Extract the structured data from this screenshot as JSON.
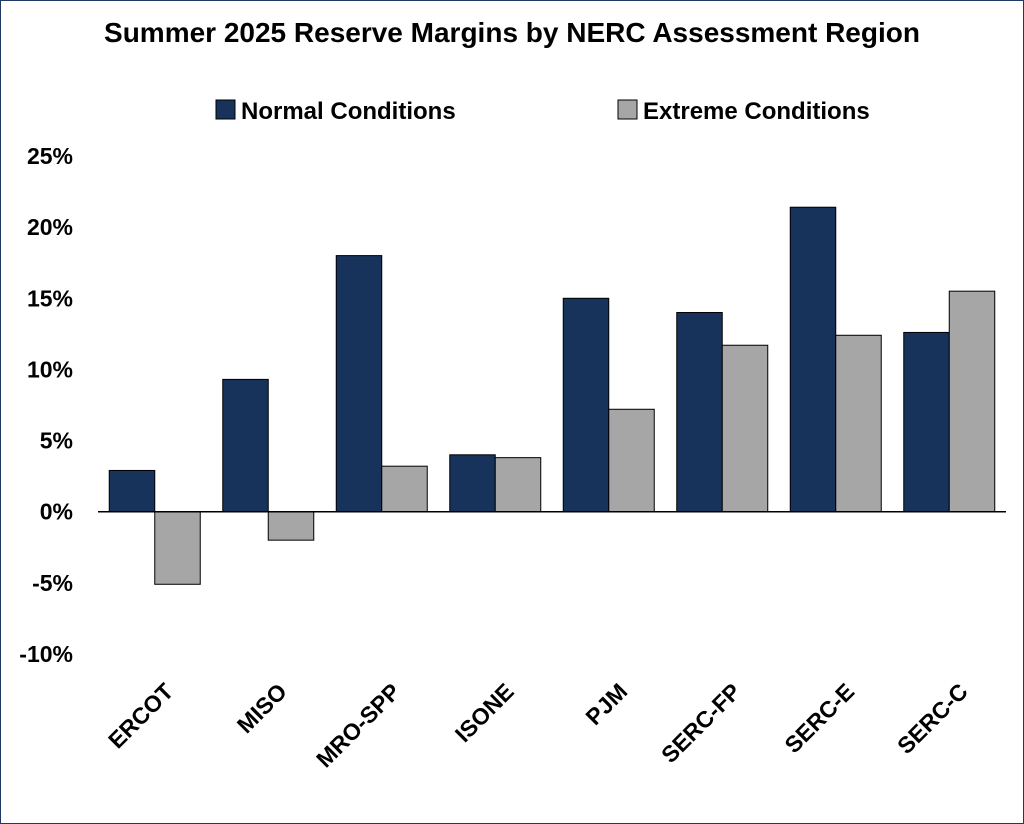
{
  "chart_data": {
    "type": "bar",
    "title": "Summer 2025 Reserve Margins by NERC Assessment Region",
    "xlabel": "",
    "ylabel": "",
    "ylim": [
      -10,
      25
    ],
    "yticks": [
      25,
      20,
      15,
      10,
      5,
      0,
      -5,
      -10
    ],
    "ytick_labels": [
      "25%",
      "20%",
      "15%",
      "10%",
      "5%",
      "0%",
      "-5%",
      "-10%"
    ],
    "legend_position": "top",
    "grid": false,
    "categories": [
      "ERCOT",
      "MISO",
      "MRO-SPP",
      "ISONE",
      "PJM",
      "SERC-FP",
      "SERC-E",
      "SERC-C"
    ],
    "series": [
      {
        "name": "Normal Conditions",
        "color": "#17335c",
        "values": [
          2.9,
          9.3,
          18.0,
          4.0,
          15.0,
          14.0,
          21.4,
          12.6
        ]
      },
      {
        "name": "Extreme Conditions",
        "color": "#a6a6a6",
        "values": [
          -5.1,
          -2.0,
          3.2,
          3.8,
          7.2,
          11.7,
          12.4,
          15.5
        ]
      }
    ]
  }
}
